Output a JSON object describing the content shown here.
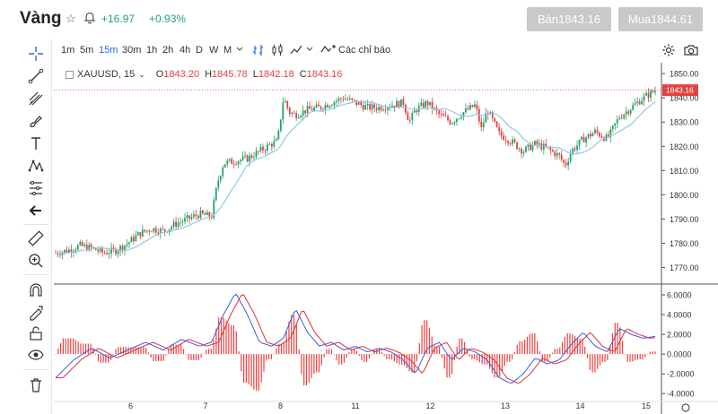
{
  "header": {
    "title": "Vàng",
    "change": "+16.97",
    "change_pct": "+0.93%",
    "sell_label": "Bán1843.16",
    "buy_label": "Mua1844.61",
    "colors": {
      "up": "#26a269",
      "button_bg": "#c9c9c9"
    }
  },
  "toolbar": {
    "timeframes": [
      "1m",
      "5m",
      "15m",
      "30m",
      "1h",
      "2h",
      "4h",
      "D",
      "W",
      "M"
    ],
    "active_timeframe": "15m",
    "indicators_label": "Các chỉ báo",
    "accent": "#2962ff"
  },
  "left_toolbar": {
    "icons": [
      "crosshair-icon",
      "trend-line-icon",
      "pitchfork-icon",
      "brush-icon",
      "text-icon",
      "pattern-icon",
      "fib-icon",
      "back-arrow-icon",
      "ruler-icon",
      "zoom-in-icon",
      "magnet-icon",
      "lock-drawing-icon",
      "unlock-icon",
      "eye-icon",
      "trash-icon"
    ]
  },
  "legend": {
    "symbol": "XAUUSD, 15",
    "open_label": "O",
    "open": "1843.20",
    "high_label": "H",
    "high": "1845.78",
    "low_label": "L",
    "low": "1842.18",
    "close_label": "C",
    "close": "1843.16"
  },
  "chart_data": {
    "type": "candlestick",
    "x_ticks": [
      "6",
      "7",
      "8",
      "11",
      "12",
      "13",
      "14",
      "15"
    ],
    "price_axis": {
      "ticks": [
        1850,
        1840,
        1830,
        1820,
        1810,
        1800,
        1790,
        1780,
        1770
      ],
      "ylim": [
        1765,
        1853
      ],
      "last_price_label": "1843.16",
      "last_price": 1843.16
    },
    "price_path": [
      [
        0,
        1776
      ],
      [
        0.02,
        1777
      ],
      [
        0.04,
        1779
      ],
      [
        0.06,
        1778
      ],
      [
        0.08,
        1776
      ],
      [
        0.1,
        1777
      ],
      [
        0.12,
        1780
      ],
      [
        0.14,
        1784
      ],
      [
        0.16,
        1786
      ],
      [
        0.18,
        1785
      ],
      [
        0.2,
        1788
      ],
      [
        0.22,
        1790
      ],
      [
        0.24,
        1792
      ],
      [
        0.26,
        1791
      ],
      [
        0.27,
        1805
      ],
      [
        0.28,
        1813
      ],
      [
        0.3,
        1814
      ],
      [
        0.32,
        1815
      ],
      [
        0.34,
        1818
      ],
      [
        0.36,
        1821
      ],
      [
        0.37,
        1822
      ],
      [
        0.38,
        1840
      ],
      [
        0.39,
        1834
      ],
      [
        0.4,
        1833
      ],
      [
        0.42,
        1835
      ],
      [
        0.44,
        1836
      ],
      [
        0.46,
        1838
      ],
      [
        0.48,
        1840
      ],
      [
        0.5,
        1838
      ],
      [
        0.52,
        1836
      ],
      [
        0.54,
        1836
      ],
      [
        0.56,
        1837
      ],
      [
        0.58,
        1838
      ],
      [
        0.59,
        1830
      ],
      [
        0.6,
        1835
      ],
      [
        0.62,
        1838
      ],
      [
        0.64,
        1833
      ],
      [
        0.66,
        1830
      ],
      [
        0.68,
        1834
      ],
      [
        0.7,
        1837
      ],
      [
        0.71,
        1827
      ],
      [
        0.72,
        1835
      ],
      [
        0.74,
        1825
      ],
      [
        0.76,
        1822
      ],
      [
        0.78,
        1818
      ],
      [
        0.8,
        1821
      ],
      [
        0.82,
        1819
      ],
      [
        0.84,
        1816
      ],
      [
        0.85,
        1812
      ],
      [
        0.86,
        1818
      ],
      [
        0.88,
        1823
      ],
      [
        0.9,
        1826
      ],
      [
        0.92,
        1823
      ],
      [
        0.94,
        1832
      ],
      [
        0.96,
        1836
      ],
      [
        0.98,
        1840
      ],
      [
        1.0,
        1843
      ]
    ],
    "oscillator": {
      "ticks": [
        "6.0000",
        "4.0000",
        "2.0000",
        "0.0000",
        "-2.0000",
        "-4.0000"
      ],
      "tick_values": [
        6,
        4,
        2,
        0,
        -2,
        -4
      ],
      "ylim": [
        -4.8,
        7
      ],
      "line": [
        [
          0,
          -2.4
        ],
        [
          0.03,
          -0.6
        ],
        [
          0.06,
          0.6
        ],
        [
          0.09,
          -0.4
        ],
        [
          0.12,
          0.4
        ],
        [
          0.15,
          1.2
        ],
        [
          0.18,
          0.4
        ],
        [
          0.21,
          1.5
        ],
        [
          0.24,
          0.8
        ],
        [
          0.26,
          1.2
        ],
        [
          0.28,
          4.0
        ],
        [
          0.3,
          6.2
        ],
        [
          0.32,
          4.0
        ],
        [
          0.34,
          1.2
        ],
        [
          0.36,
          0.8
        ],
        [
          0.38,
          1.6
        ],
        [
          0.4,
          4.6
        ],
        [
          0.42,
          2.2
        ],
        [
          0.44,
          0.8
        ],
        [
          0.46,
          1.2
        ],
        [
          0.48,
          0.4
        ],
        [
          0.5,
          0.8
        ],
        [
          0.52,
          0.2
        ],
        [
          0.54,
          0.6
        ],
        [
          0.56,
          0.2
        ],
        [
          0.58,
          -0.6
        ],
        [
          0.6,
          -2.0
        ],
        [
          0.62,
          0.6
        ],
        [
          0.64,
          1.2
        ],
        [
          0.66,
          -0.6
        ],
        [
          0.68,
          0.6
        ],
        [
          0.7,
          0.2
        ],
        [
          0.72,
          -0.6
        ],
        [
          0.74,
          -2.4
        ],
        [
          0.76,
          -3.0
        ],
        [
          0.78,
          -2.0
        ],
        [
          0.8,
          -0.4
        ],
        [
          0.82,
          -1.0
        ],
        [
          0.84,
          -0.6
        ],
        [
          0.86,
          1.0
        ],
        [
          0.88,
          2.2
        ],
        [
          0.9,
          0.8
        ],
        [
          0.92,
          0.2
        ],
        [
          0.94,
          2.6
        ],
        [
          0.96,
          2.0
        ],
        [
          0.98,
          1.6
        ],
        [
          1.0,
          1.8
        ]
      ],
      "colors": {
        "fast": "#3b5bdb",
        "slow": "#e03131",
        "hist": "#f03e3e"
      }
    }
  }
}
